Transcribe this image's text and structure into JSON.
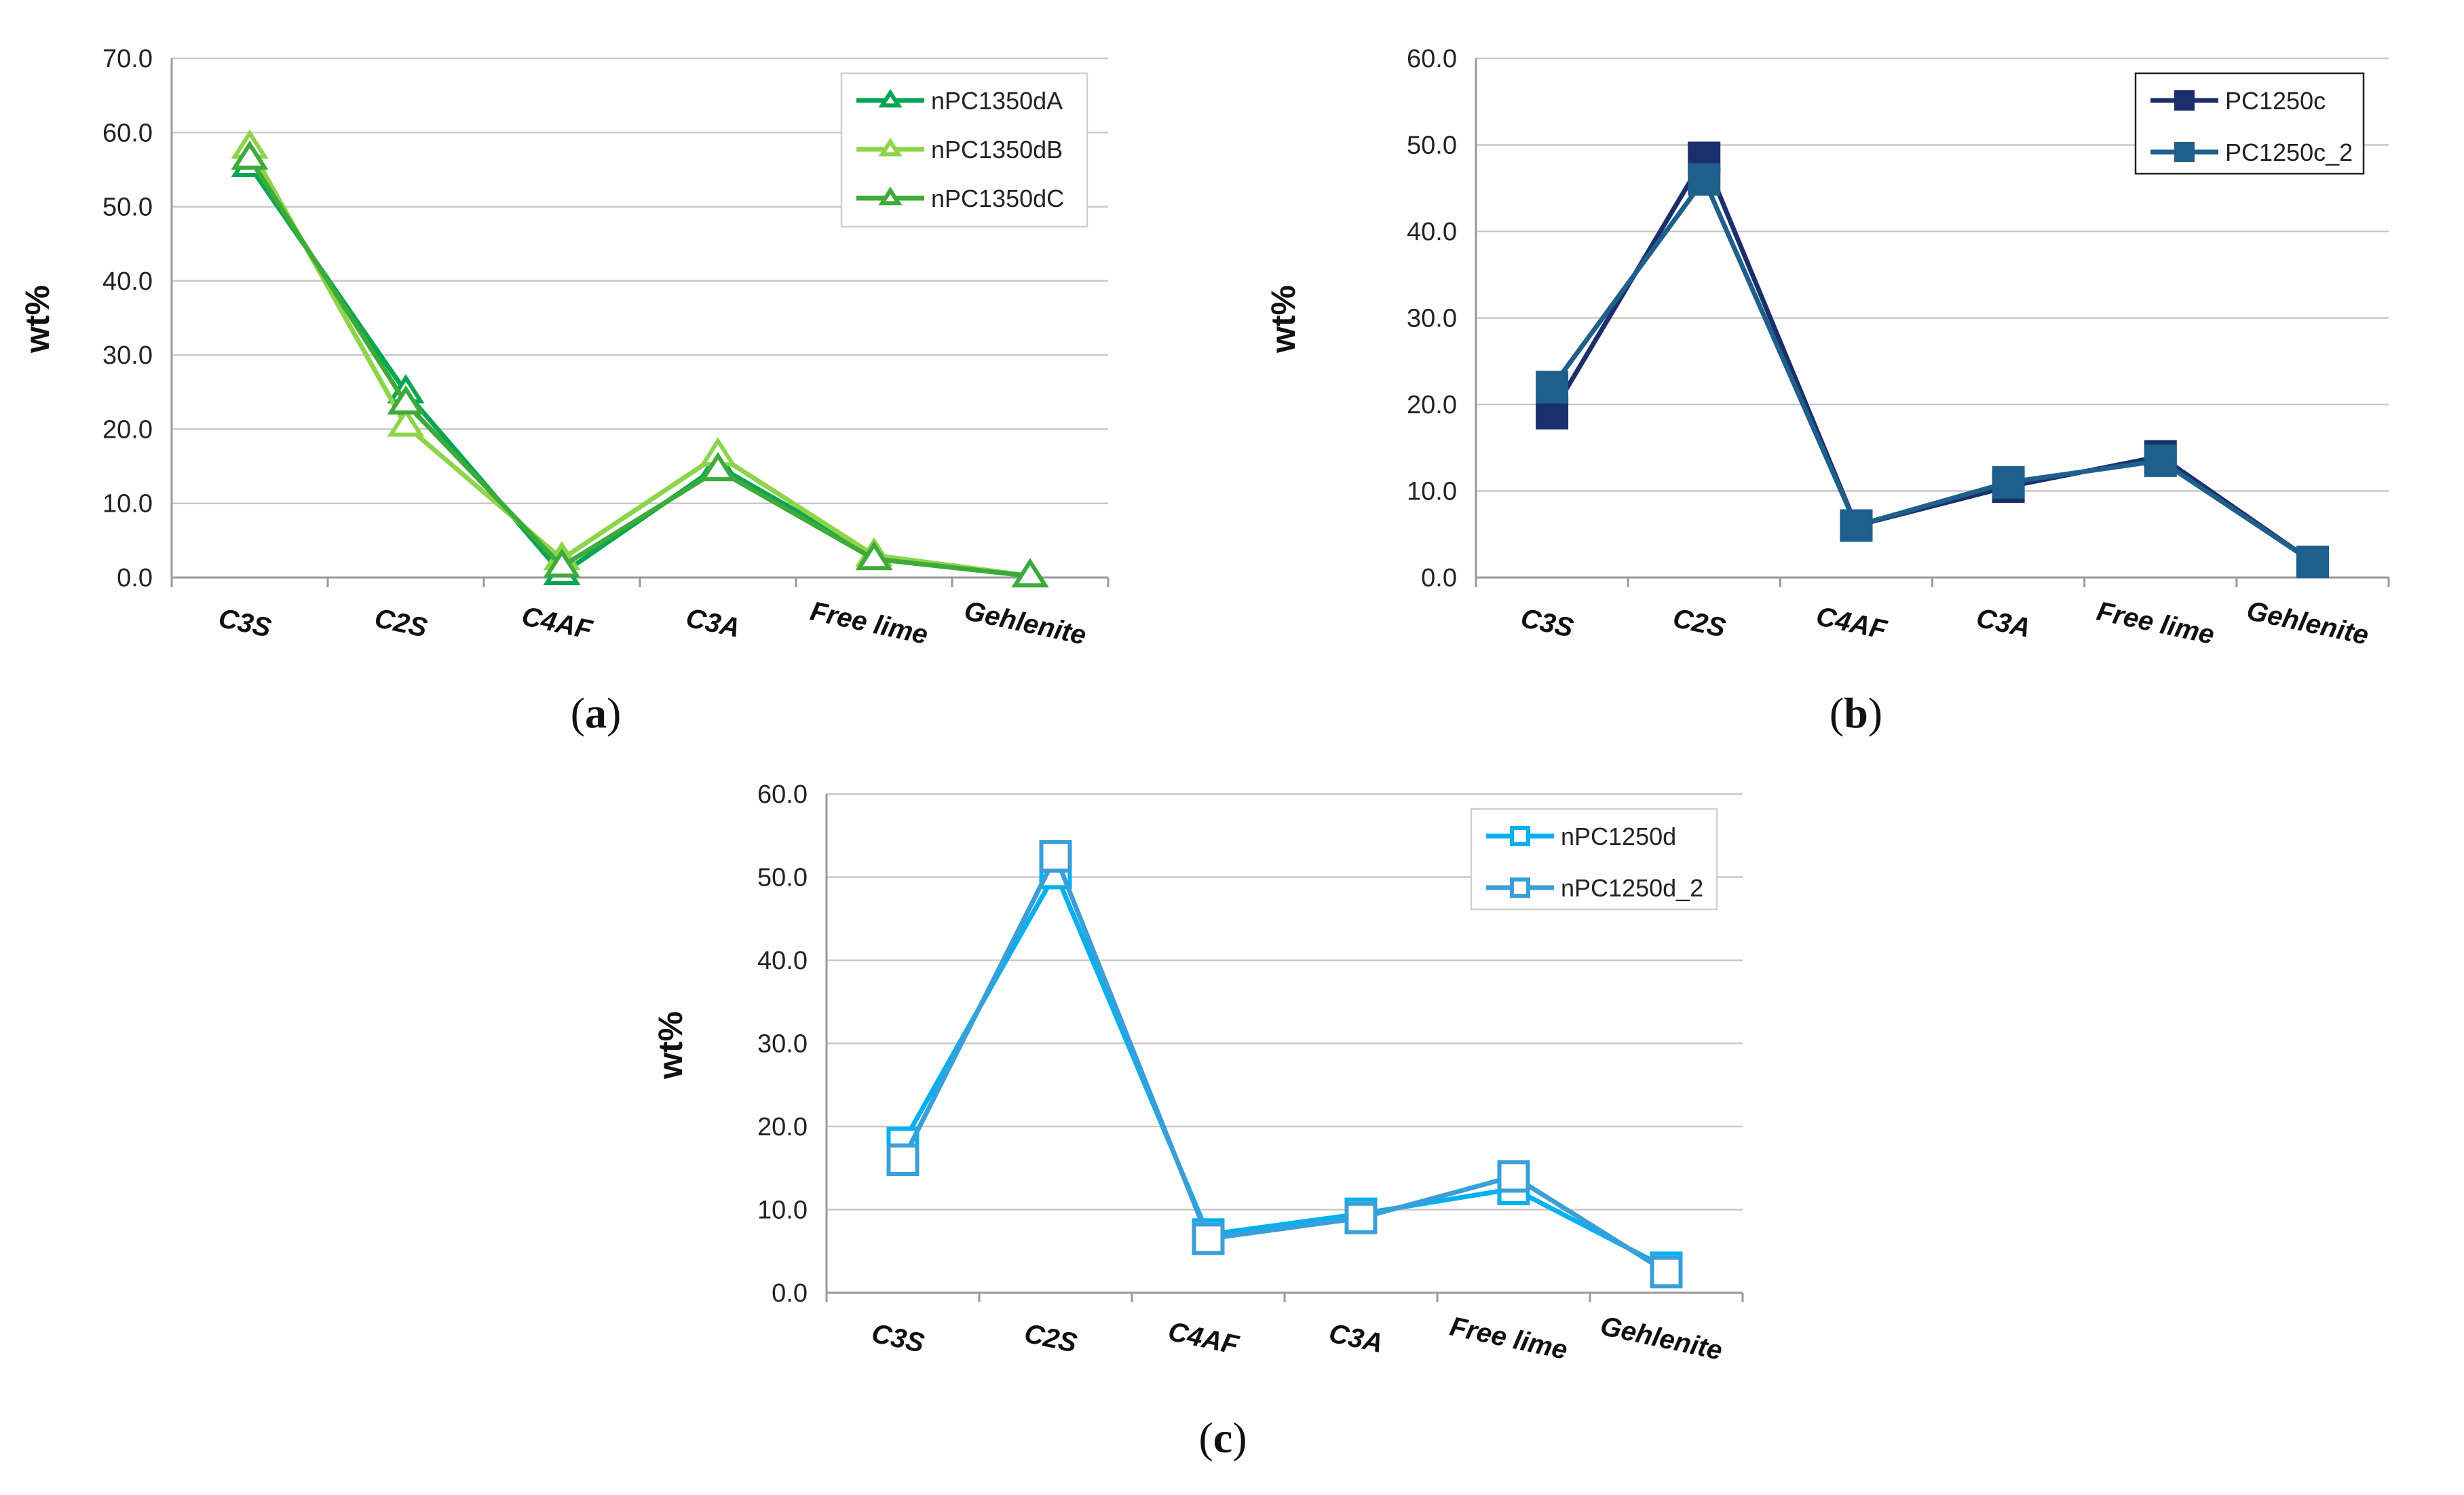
{
  "chart_data": [
    {
      "type": "line",
      "panel_label": "a",
      "ylabel": "wt%",
      "xlabel": "",
      "ylim": [
        0,
        70
      ],
      "ytick_step": 10,
      "ytick_labels": [
        "0.0",
        "10.0",
        "20.0",
        "30.0",
        "40.0",
        "50.0",
        "60.0",
        "70.0"
      ],
      "categories": [
        "C3S",
        "C2S",
        "C4AF",
        "C3A",
        "Free lime",
        "Gehlenite"
      ],
      "grid": true,
      "legend_position": "top-right",
      "series": [
        {
          "name": "nPC1350dA",
          "color": "#00a651",
          "marker": "triangle-open",
          "values": [
            55.5,
            25.0,
            0.5,
            15.0,
            3.0,
            0.2
          ]
        },
        {
          "name": "nPC1350dB",
          "color": "#8dd44a",
          "marker": "triangle-open",
          "values": [
            58.0,
            20.5,
            2.5,
            16.5,
            3.0,
            0.2
          ]
        },
        {
          "name": "nPC1350dC",
          "color": "#3daa3a",
          "marker": "triangle-open",
          "values": [
            56.5,
            23.5,
            1.5,
            14.5,
            2.5,
            0.2
          ]
        }
      ]
    },
    {
      "type": "line",
      "panel_label": "b",
      "ylabel": "wt%",
      "xlabel": "",
      "ylim": [
        0,
        60
      ],
      "ytick_step": 10,
      "ytick_labels": [
        "0.0",
        "10.0",
        "20.0",
        "30.0",
        "40.0",
        "50.0",
        "60.0"
      ],
      "categories": [
        "C3S",
        "C2S",
        "C4AF",
        "C3A",
        "Free lime",
        "Gehlenite"
      ],
      "grid": true,
      "legend_position": "top-right",
      "series": [
        {
          "name": "PC1250c",
          "color": "#1a2f6b",
          "marker": "square-filled",
          "values": [
            19.0,
            48.5,
            6.0,
            10.5,
            14.0,
            1.8
          ]
        },
        {
          "name": "PC1250c_2",
          "color": "#1f5f8b",
          "marker": "square-filled",
          "values": [
            22.0,
            46.0,
            6.0,
            11.0,
            13.5,
            1.8
          ]
        }
      ]
    },
    {
      "type": "line",
      "panel_label": "c",
      "ylabel": "wt%",
      "xlabel": "",
      "ylim": [
        0,
        60
      ],
      "ytick_step": 10,
      "ytick_labels": [
        "0.0",
        "10.0",
        "20.0",
        "30.0",
        "40.0",
        "50.0",
        "60.0"
      ],
      "categories": [
        "C3S",
        "C2S",
        "C4AF",
        "C3A",
        "Free lime",
        "Gehlenite"
      ],
      "grid": true,
      "legend_position": "top-right",
      "series": [
        {
          "name": "nPC1250d",
          "color": "#00b0f0",
          "marker": "square-open",
          "values": [
            18.0,
            50.5,
            7.0,
            9.5,
            12.5,
            3.0
          ]
        },
        {
          "name": "nPC1250d_2",
          "color": "#3a9fd8",
          "marker": "square-open",
          "values": [
            16.0,
            52.5,
            6.5,
            9.0,
            14.0,
            2.5
          ]
        }
      ]
    }
  ]
}
